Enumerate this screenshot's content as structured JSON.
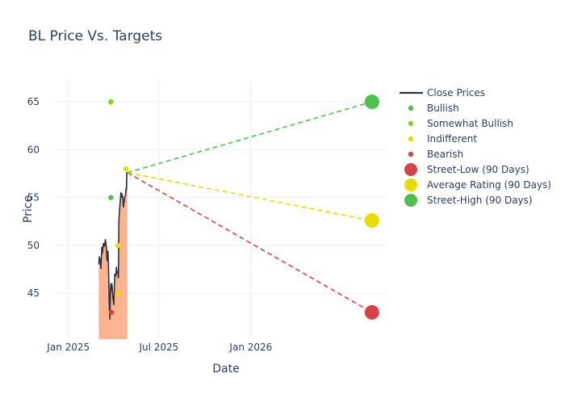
{
  "chart_data": {
    "type": "line",
    "title": "BL Price Vs. Targets",
    "xlabel": "Date",
    "ylabel": "Price",
    "x_range": [
      "2024-12-05",
      "2026-10-01"
    ],
    "ylim": [
      40.2,
      67.2
    ],
    "x_ticks": [
      {
        "label": "Jan 2025",
        "date": "2025-01-01"
      },
      {
        "label": "Jul 2025",
        "date": "2025-07-01"
      },
      {
        "label": "Jan 2026",
        "date": "2026-01-01"
      }
    ],
    "y_ticks": [
      45,
      50,
      55,
      60,
      65
    ],
    "grid": true,
    "legend_position": "right",
    "colors": {
      "close": "#2a3240",
      "area": "#fdb48e",
      "bullish": "#4dc14d",
      "somewhat_bullish": "#8ed02a",
      "indifferent": "#e4df00",
      "bearish": "#d54346",
      "street_low": "#d54346",
      "average": "#e4df00",
      "street_high": "#4dc14d",
      "grid": "#ebeef3",
      "text": "#2a3f5f"
    },
    "series": [
      {
        "name": "Close Prices",
        "kind": "line",
        "points": [
          [
            "2025-03-03",
            48.0
          ],
          [
            "2025-03-04",
            48.8
          ],
          [
            "2025-03-06",
            48.3
          ],
          [
            "2025-03-07",
            47.6
          ],
          [
            "2025-03-09",
            49.8
          ],
          [
            "2025-03-10",
            49.2
          ],
          [
            "2025-03-12",
            50.2
          ],
          [
            "2025-03-14",
            49.9
          ],
          [
            "2025-03-16",
            50.6
          ],
          [
            "2025-03-18",
            49.8
          ],
          [
            "2025-03-19",
            48.6
          ],
          [
            "2025-03-20",
            48.4
          ],
          [
            "2025-03-21",
            49.4
          ],
          [
            "2025-03-22",
            48.2
          ],
          [
            "2025-03-24",
            43.5
          ],
          [
            "2025-03-25",
            42.3
          ],
          [
            "2025-03-26",
            45.2
          ],
          [
            "2025-03-27",
            46.0
          ],
          [
            "2025-03-28",
            45.3
          ],
          [
            "2025-03-29",
            46.0
          ],
          [
            "2025-03-31",
            44.5
          ],
          [
            "2025-04-02",
            43.8
          ],
          [
            "2025-04-03",
            45.8
          ],
          [
            "2025-04-04",
            47.0
          ],
          [
            "2025-04-06",
            46.8
          ],
          [
            "2025-04-07",
            47.7
          ],
          [
            "2025-04-08",
            47.1
          ],
          [
            "2025-04-10",
            47.3
          ],
          [
            "2025-04-11",
            46.6
          ],
          [
            "2025-04-12",
            52.5
          ],
          [
            "2025-04-13",
            53.5
          ],
          [
            "2025-04-15",
            54.8
          ],
          [
            "2025-04-16",
            55.5
          ],
          [
            "2025-04-17",
            55.0
          ],
          [
            "2025-04-18",
            55.4
          ],
          [
            "2025-04-20",
            55.0
          ],
          [
            "2025-04-21",
            54.0
          ],
          [
            "2025-04-22",
            54.4
          ],
          [
            "2025-04-24",
            55.1
          ],
          [
            "2025-04-25",
            55.2
          ],
          [
            "2025-04-26",
            55.9
          ],
          [
            "2025-04-27",
            55.8
          ],
          [
            "2025-04-28",
            57.6
          ],
          [
            "2025-04-29",
            57.6
          ]
        ]
      },
      {
        "name": "Bullish",
        "kind": "rating",
        "points": [
          [
            "2025-03-27",
            65.0
          ],
          [
            "2025-03-27",
            55.0
          ]
        ]
      },
      {
        "name": "Somewhat Bullish",
        "kind": "rating",
        "points": [
          [
            "2025-03-27",
            65.0
          ]
        ]
      },
      {
        "name": "Indifferent",
        "kind": "rating",
        "points": [
          [
            "2025-04-10",
            50.0
          ],
          [
            "2025-04-10",
            45.0
          ],
          [
            "2025-04-26",
            58.0
          ]
        ]
      },
      {
        "name": "Bearish",
        "kind": "rating",
        "points": [
          [
            "2025-03-28",
            43.0
          ]
        ]
      },
      {
        "name": "Street-Low (90 Days)",
        "kind": "target",
        "value": 43.0,
        "date": "2026-08-31"
      },
      {
        "name": "Average Rating (90 Days)",
        "kind": "target",
        "value": 52.6,
        "date": "2026-08-31"
      },
      {
        "name": "Street-High (90 Days)",
        "kind": "target",
        "value": 65.0,
        "date": "2026-08-31"
      }
    ]
  }
}
